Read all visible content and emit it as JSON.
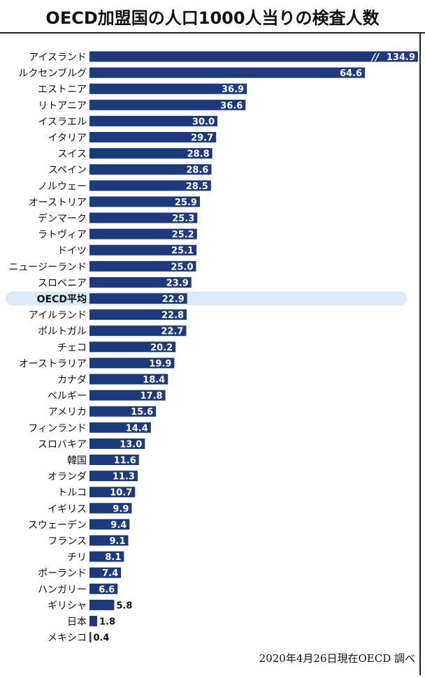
{
  "title": "OECD加盟国の人口1000人当りの検査人数",
  "source": "2020年4月26日現在OECD 調べ",
  "colors": {
    "bar": "#1f3a7a",
    "highlight_band": "#dce9f6",
    "text": "#111111",
    "value_inside": "#ffffff"
  },
  "chart_data": {
    "type": "bar",
    "orientation": "horizontal",
    "categories": [
      "アイスランド",
      "ルクセンブルグ",
      "エストニア",
      "リトアニア",
      "イスラエル",
      "イタリア",
      "スイス",
      "スペイン",
      "ノルウェー",
      "オーストリア",
      "デンマーク",
      "ラトヴィア",
      "ドイツ",
      "ニュージーランド",
      "スロベニア",
      "OECD平均",
      "アイルランド",
      "ポルトガル",
      "チェコ",
      "オーストラリア",
      "カナダ",
      "ベルギー",
      "アメリカ",
      "フィンランド",
      "スロバキア",
      "韓国",
      "オランダ",
      "トルコ",
      "イギリス",
      "スウェーデン",
      "フランス",
      "チリ",
      "ポーランド",
      "ハンガリー",
      "ギリシャ",
      "日本",
      "メキシコ"
    ],
    "values": [
      134.9,
      64.6,
      36.9,
      36.6,
      30.0,
      29.7,
      28.8,
      28.6,
      28.5,
      25.9,
      25.3,
      25.2,
      25.1,
      25.0,
      23.9,
      22.9,
      22.8,
      22.7,
      20.2,
      19.9,
      18.4,
      17.8,
      15.6,
      14.4,
      13.0,
      11.6,
      11.3,
      10.7,
      9.9,
      9.4,
      9.1,
      8.1,
      7.4,
      6.6,
      5.8,
      1.8,
      0.4
    ],
    "labels": [
      "134.9",
      "64.6",
      "36.9",
      "36.6",
      "30.0",
      "29.7",
      "28.8",
      "28.6",
      "28.5",
      "25.9",
      "25.3",
      "25.2",
      "25.1",
      "25.0",
      "23.9",
      "22.9",
      "22.8",
      "22.7",
      "20.2",
      "19.9",
      "18.4",
      "17.8",
      "15.6",
      "14.4",
      "13.0",
      "11.6",
      "11.3",
      "10.7",
      "9.9",
      "9.4",
      "9.1",
      "8.1",
      "7.4",
      "6.6",
      "5.8",
      "1.8",
      "0.4"
    ],
    "highlight_category": "OECD平均",
    "axis_break_category": "アイスランド",
    "axis_break_mark": "//",
    "title": "OECD加盟国の人口1000人当りの検査人数",
    "xlabel": "",
    "ylabel": "",
    "grid": false,
    "legend": "none"
  }
}
